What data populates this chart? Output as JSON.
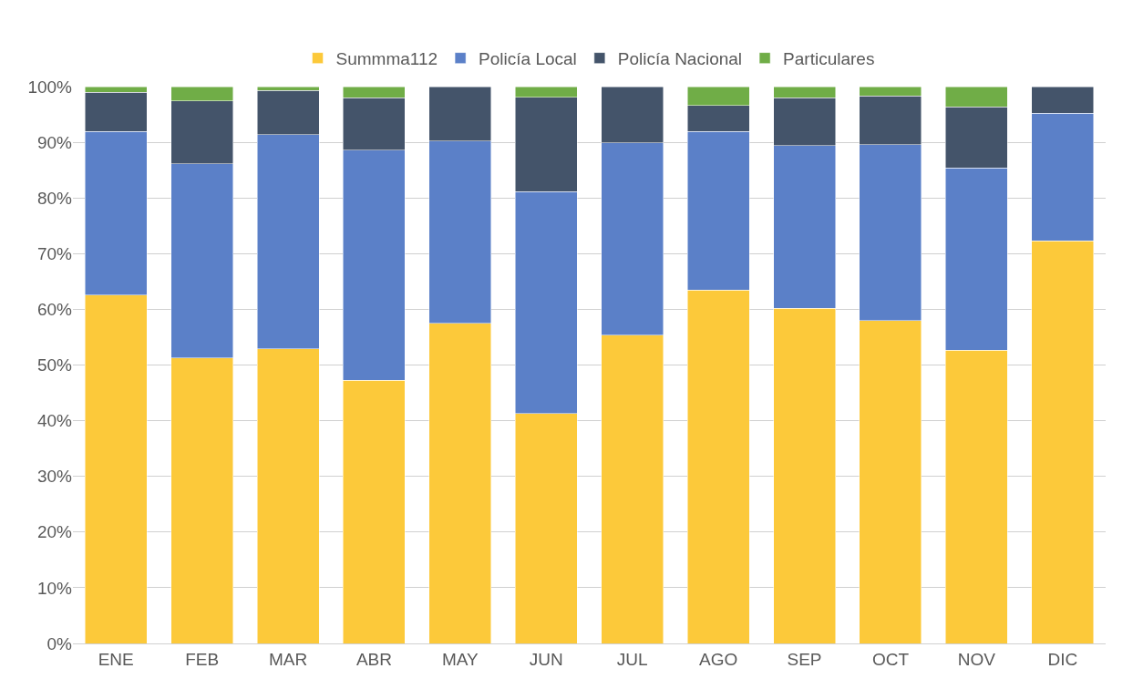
{
  "chart_data": {
    "type": "bar",
    "stacked": true,
    "categories": [
      "ENE",
      "FEB",
      "MAR",
      "ABR",
      "MAY",
      "JUN",
      "JUL",
      "AGO",
      "SEP",
      "OCT",
      "NOV",
      "DIC"
    ],
    "series": [
      {
        "name": "Summma112",
        "color": "#fcc93a",
        "values": [
          62.6,
          51.3,
          52.9,
          47.3,
          57.5,
          41.3,
          55.4,
          63.5,
          60.2,
          58.0,
          52.7,
          72.3
        ]
      },
      {
        "name": "Policía Local",
        "color": "#5b80c8",
        "values": [
          29.3,
          34.8,
          38.5,
          41.3,
          32.7,
          39.8,
          34.5,
          28.4,
          29.2,
          31.6,
          32.7,
          22.9
        ]
      },
      {
        "name": "Policía Nacional",
        "color": "#44546a",
        "values": [
          7.1,
          11.3,
          7.9,
          9.4,
          9.8,
          17.0,
          10.1,
          4.7,
          8.6,
          8.7,
          11.0,
          4.8
        ]
      },
      {
        "name": "Particulares",
        "color": "#70ad47",
        "values": [
          1.0,
          2.6,
          0.7,
          2.0,
          null,
          1.9,
          null,
          3.4,
          2.0,
          1.7,
          3.6,
          null
        ]
      }
    ],
    "ylim": [
      0,
      100
    ],
    "yticks": [
      {
        "value": 0,
        "label": "0%"
      },
      {
        "value": 10,
        "label": "10%"
      },
      {
        "value": 20,
        "label": "20%"
      },
      {
        "value": 30,
        "label": "30%"
      },
      {
        "value": 40,
        "label": "40%"
      },
      {
        "value": 50,
        "label": "50%"
      },
      {
        "value": 60,
        "label": "60%"
      },
      {
        "value": 70,
        "label": "70%"
      },
      {
        "value": 80,
        "label": "80%"
      },
      {
        "value": 90,
        "label": "90%"
      },
      {
        "value": 100,
        "label": "100%"
      }
    ],
    "grid": "y",
    "legend": "top"
  }
}
